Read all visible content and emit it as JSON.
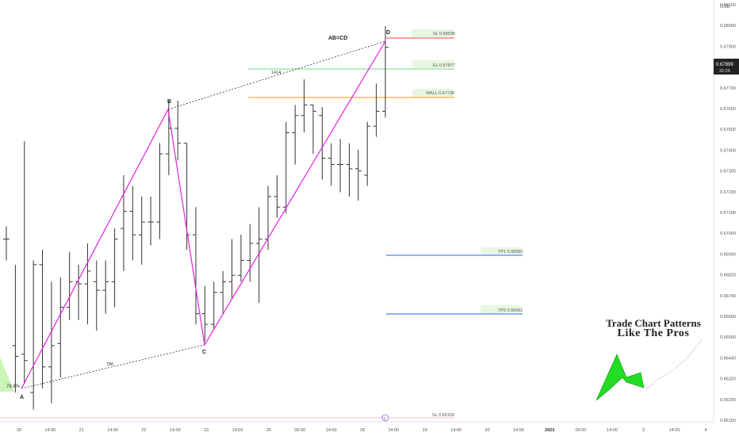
{
  "currency_label": "USD",
  "price_axis": {
    "ticks": [
      "0.68100",
      "0.68000",
      "0.67900",
      "0.67800",
      "0.67700",
      "0.67600",
      "0.67500",
      "0.67400",
      "0.67300",
      "0.67200",
      "0.67100",
      "0.67000",
      "0.66900",
      "0.66820",
      "0.66740",
      "0.66660",
      "0.66560",
      "0.66440",
      "0.66320",
      "0.66200",
      "0.66150"
    ],
    "current_price": "0.67899",
    "countdown": "32:26"
  },
  "time_axis": {
    "ticks": [
      "20",
      "14:00",
      "21",
      "14:00",
      "22",
      "14:00",
      "23",
      "14:00",
      "26",
      "06:00",
      "14:00",
      "28",
      "14:00",
      "29",
      "14:00",
      "30",
      "14:00",
      "2023",
      "06:00",
      "14:00",
      "3",
      "14:00",
      "4"
    ]
  },
  "pattern": {
    "labels": [
      "A",
      "B",
      "C",
      "D"
    ],
    "title": "AB=CD",
    "ratio_ab": "1414",
    "ratio_ac": "786",
    "fib_label": "78.6%",
    "marker": "F",
    "level_sl": "SL 0.68038",
    "level_el": "EL 0.67877",
    "level_wall": "WALL 0.67738",
    "level_tp1": "TP1 0.66950",
    "level_tp2": "TP2 0.66661",
    "level_sl_bottom": "SL 0.66150"
  },
  "colors": {
    "pattern": "#e020e0",
    "sl": "#f44336",
    "el": "#4caf50",
    "wall": "#ff9800",
    "tp": "#2962ff",
    "bars": "#333333"
  },
  "chart_data": {
    "type": "ohlc",
    "price_range": [
      0.6615,
      0.681
    ],
    "bars": [
      {
        "o": 0.67,
        "h": 0.6706,
        "l": 0.669,
        "c": 0.67
      },
      {
        "o": 0.665,
        "h": 0.6688,
        "l": 0.6628,
        "c": 0.6645
      },
      {
        "o": 0.6646,
        "h": 0.6746,
        "l": 0.6632,
        "c": 0.6643
      },
      {
        "o": 0.6628,
        "h": 0.669,
        "l": 0.662,
        "c": 0.6688
      },
      {
        "o": 0.6688,
        "h": 0.6695,
        "l": 0.663,
        "c": 0.664
      },
      {
        "o": 0.664,
        "h": 0.668,
        "l": 0.6623,
        "c": 0.665
      },
      {
        "o": 0.6651,
        "h": 0.6682,
        "l": 0.6635,
        "c": 0.6668
      },
      {
        "o": 0.6668,
        "h": 0.6694,
        "l": 0.6662,
        "c": 0.668
      },
      {
        "o": 0.668,
        "h": 0.6688,
        "l": 0.6662,
        "c": 0.6679
      },
      {
        "o": 0.6679,
        "h": 0.6698,
        "l": 0.666,
        "c": 0.6685
      },
      {
        "o": 0.668,
        "h": 0.669,
        "l": 0.6657,
        "c": 0.6676
      },
      {
        "o": 0.6676,
        "h": 0.669,
        "l": 0.6665,
        "c": 0.668
      },
      {
        "o": 0.668,
        "h": 0.6705,
        "l": 0.6668,
        "c": 0.67
      },
      {
        "o": 0.6705,
        "h": 0.673,
        "l": 0.6685,
        "c": 0.6713
      },
      {
        "o": 0.6713,
        "h": 0.6725,
        "l": 0.669,
        "c": 0.6702
      },
      {
        "o": 0.6702,
        "h": 0.672,
        "l": 0.6688,
        "c": 0.6708
      },
      {
        "o": 0.6708,
        "h": 0.672,
        "l": 0.6697,
        "c": 0.6708
      },
      {
        "o": 0.6708,
        "h": 0.6745,
        "l": 0.67,
        "c": 0.674
      },
      {
        "o": 0.674,
        "h": 0.6765,
        "l": 0.673,
        "c": 0.6752
      },
      {
        "o": 0.6752,
        "h": 0.6765,
        "l": 0.6737,
        "c": 0.6745
      },
      {
        "o": 0.6745,
        "h": 0.6745,
        "l": 0.6695,
        "c": 0.6702
      },
      {
        "o": 0.6702,
        "h": 0.6715,
        "l": 0.666,
        "c": 0.6665
      },
      {
        "o": 0.6665,
        "h": 0.6678,
        "l": 0.6652,
        "c": 0.666
      },
      {
        "o": 0.666,
        "h": 0.668,
        "l": 0.6658,
        "c": 0.6675
      },
      {
        "o": 0.6675,
        "h": 0.6685,
        "l": 0.6665,
        "c": 0.668
      },
      {
        "o": 0.668,
        "h": 0.67,
        "l": 0.6672,
        "c": 0.6683
      },
      {
        "o": 0.6683,
        "h": 0.6702,
        "l": 0.668,
        "c": 0.669
      },
      {
        "o": 0.669,
        "h": 0.6707,
        "l": 0.668,
        "c": 0.6698
      },
      {
        "o": 0.6698,
        "h": 0.6715,
        "l": 0.667,
        "c": 0.67
      },
      {
        "o": 0.67,
        "h": 0.6725,
        "l": 0.6695,
        "c": 0.672
      },
      {
        "o": 0.672,
        "h": 0.673,
        "l": 0.671,
        "c": 0.6715
      },
      {
        "o": 0.6715,
        "h": 0.6755,
        "l": 0.6712,
        "c": 0.675
      },
      {
        "o": 0.675,
        "h": 0.6763,
        "l": 0.6735,
        "c": 0.6758
      },
      {
        "o": 0.6758,
        "h": 0.6775,
        "l": 0.675,
        "c": 0.6763
      },
      {
        "o": 0.6763,
        "h": 0.6763,
        "l": 0.674,
        "c": 0.676
      },
      {
        "o": 0.6758,
        "h": 0.6762,
        "l": 0.6728,
        "c": 0.6738
      },
      {
        "o": 0.6738,
        "h": 0.6745,
        "l": 0.6725,
        "c": 0.6735
      },
      {
        "o": 0.6735,
        "h": 0.6747,
        "l": 0.6722,
        "c": 0.6735
      },
      {
        "o": 0.6735,
        "h": 0.6745,
        "l": 0.672,
        "c": 0.6733
      },
      {
        "o": 0.6733,
        "h": 0.6742,
        "l": 0.6718,
        "c": 0.6732
      },
      {
        "o": 0.673,
        "h": 0.6755,
        "l": 0.6725,
        "c": 0.6753
      },
      {
        "o": 0.6753,
        "h": 0.6773,
        "l": 0.6748,
        "c": 0.676
      },
      {
        "o": 0.676,
        "h": 0.68,
        "l": 0.6757,
        "c": 0.679
      }
    ]
  }
}
